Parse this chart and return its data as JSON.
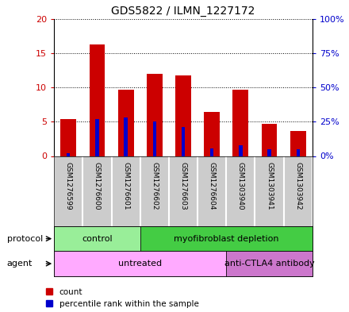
{
  "title": "GDS5822 / ILMN_1227172",
  "samples": [
    "GSM1276599",
    "GSM1276600",
    "GSM1276601",
    "GSM1276602",
    "GSM1276603",
    "GSM1276604",
    "GSM1303940",
    "GSM1303941",
    "GSM1303942"
  ],
  "counts": [
    5.4,
    16.3,
    9.6,
    12.0,
    11.7,
    6.4,
    9.6,
    4.7,
    3.7
  ],
  "percentile_ranks_pct": [
    2,
    27,
    28,
    25,
    21,
    5.5,
    8,
    5,
    5
  ],
  "count_color": "#cc0000",
  "percentile_color": "#0000cc",
  "ylim_left": [
    0,
    20
  ],
  "ylim_right": [
    0,
    100
  ],
  "yticks_left": [
    0,
    5,
    10,
    15,
    20
  ],
  "ytick_labels_left": [
    "0",
    "5",
    "10",
    "15",
    "20"
  ],
  "yticks_right": [
    0,
    25,
    50,
    75,
    100
  ],
  "ytick_labels_right": [
    "0%",
    "25%",
    "50%",
    "75%",
    "100%"
  ],
  "protocol_groups": [
    {
      "label": "control",
      "start": 0,
      "end": 3,
      "color": "#99ee99"
    },
    {
      "label": "myofibroblast depletion",
      "start": 3,
      "end": 9,
      "color": "#44cc44"
    }
  ],
  "agent_groups": [
    {
      "label": "untreated",
      "start": 0,
      "end": 6,
      "color": "#ffaaff"
    },
    {
      "label": "anti-CTLA4 antibody",
      "start": 6,
      "end": 9,
      "color": "#cc77cc"
    }
  ],
  "protocol_label": "protocol",
  "agent_label": "agent",
  "legend_count": "count",
  "legend_pct": "percentile rank within the sample",
  "bar_width": 0.55,
  "blue_bar_width": 0.12,
  "sample_area_color": "#cccccc",
  "bg_color": "white"
}
